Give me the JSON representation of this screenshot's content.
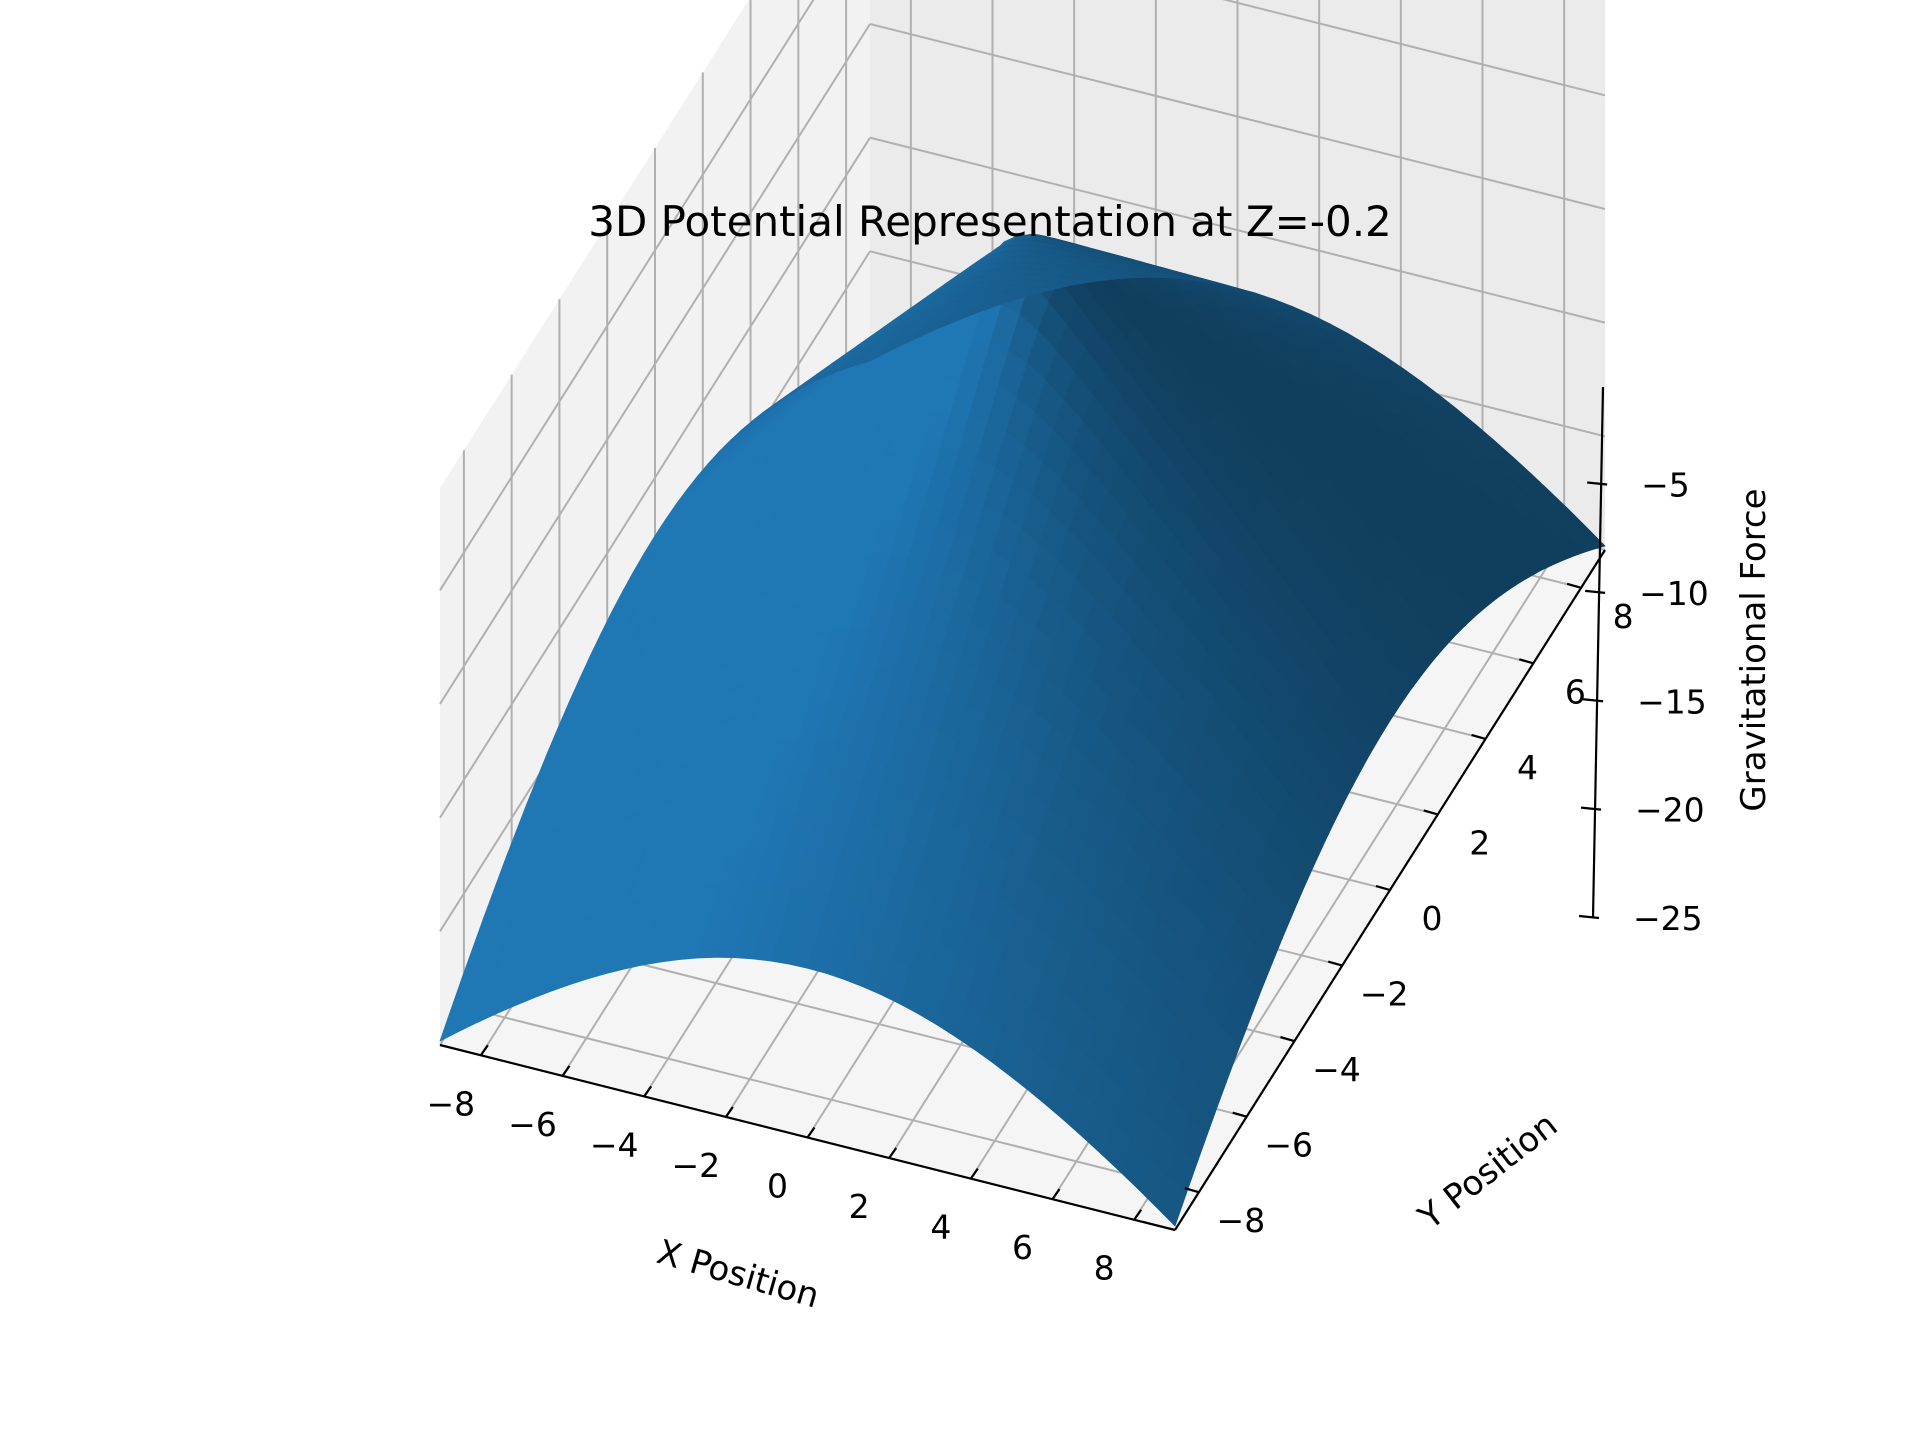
{
  "chart_data": {
    "type": "surface3d",
    "title": "3D Potential Representation at Z=-0.2",
    "xlabel": "X Position",
    "ylabel": "Y Position",
    "zlabel": "Gravitational Force",
    "x_ticks": [
      -8,
      -6,
      -4,
      -2,
      0,
      2,
      4,
      6,
      8
    ],
    "y_ticks": [
      -8,
      -6,
      -4,
      -2,
      0,
      2,
      4,
      6,
      8
    ],
    "z_ticks": [
      -5,
      -10,
      -15,
      -20,
      -25
    ],
    "x_tick_labels": [
      "−8",
      "−6",
      "−4",
      "−2",
      "0",
      "2",
      "4",
      "6",
      "8"
    ],
    "y_tick_labels": [
      "−8",
      "−6",
      "−4",
      "−2",
      "0",
      "2",
      "4",
      "6",
      "8"
    ],
    "z_tick_labels": [
      "−5",
      "−10",
      "−15",
      "−20",
      "−25"
    ],
    "xlim": [
      -9,
      9
    ],
    "ylim": [
      -9,
      9
    ],
    "zlim": [
      -25,
      -0.5
    ],
    "grid": true,
    "surface_color": "#1f77b4",
    "surface_function": "z = -sqrt(x^2 + y^2 + 0.04) clipped near origin; sampled on 41x41 grid",
    "sample_points": [
      {
        "x": -9,
        "y": -9,
        "z": -18.5
      },
      {
        "x": 9,
        "y": -9,
        "z": -25
      },
      {
        "x": -9,
        "y": 9,
        "z": -16
      },
      {
        "x": 9,
        "y": 9,
        "z": -20.5
      },
      {
        "x": 0,
        "y": 0,
        "z": -1
      }
    ]
  }
}
